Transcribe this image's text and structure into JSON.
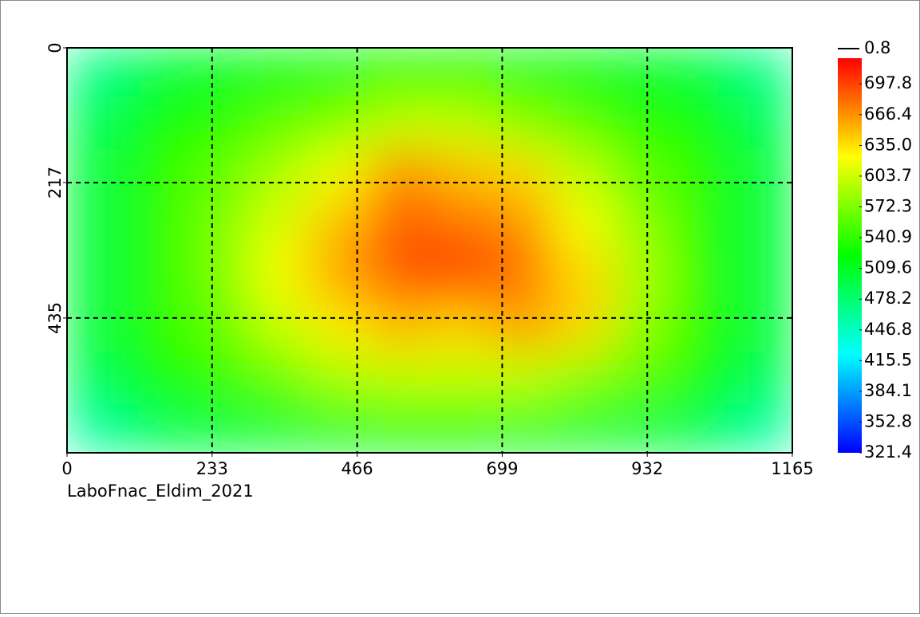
{
  "chart_data": {
    "type": "heatmap",
    "caption": "LaboFnac_Eldim_2021",
    "xlim": [
      0,
      1165
    ],
    "xticks": [
      0,
      233,
      466,
      699,
      932,
      1165
    ],
    "ylim": [
      0,
      652
    ],
    "yticks": [
      0,
      217,
      435
    ],
    "y_inverted": true,
    "grid": true,
    "z": [
      [
        470,
        500,
        510,
        515,
        520,
        525,
        525,
        520,
        515,
        510,
        500,
        470
      ],
      [
        490,
        530,
        540,
        560,
        575,
        600,
        600,
        580,
        560,
        540,
        530,
        490
      ],
      [
        500,
        540,
        560,
        590,
        620,
        670,
        650,
        640,
        600,
        560,
        540,
        500
      ],
      [
        500,
        540,
        570,
        610,
        650,
        690,
        680,
        670,
        620,
        580,
        540,
        500
      ],
      [
        500,
        540,
        570,
        620,
        660,
        690,
        700,
        680,
        640,
        590,
        540,
        500
      ],
      [
        500,
        540,
        560,
        600,
        630,
        650,
        640,
        660,
        640,
        580,
        540,
        500
      ],
      [
        490,
        530,
        545,
        565,
        590,
        600,
        600,
        600,
        580,
        560,
        530,
        490
      ],
      [
        460,
        490,
        500,
        505,
        510,
        515,
        515,
        510,
        505,
        500,
        490,
        460
      ]
    ],
    "colormap": [
      "#0000ff",
      "#00ffff",
      "#00ff00",
      "#ffff00",
      "#ff0000"
    ],
    "zlim": [
      321.4,
      724
    ],
    "colorbar_max_label": "0.8",
    "colorbar_ticks": [
      321.4,
      352.8,
      384.1,
      415.5,
      446.8,
      478.2,
      509.6,
      540.9,
      572.3,
      603.7,
      {
        "value": 635,
        "label": "635.0"
      },
      666.4,
      697.8
    ]
  }
}
